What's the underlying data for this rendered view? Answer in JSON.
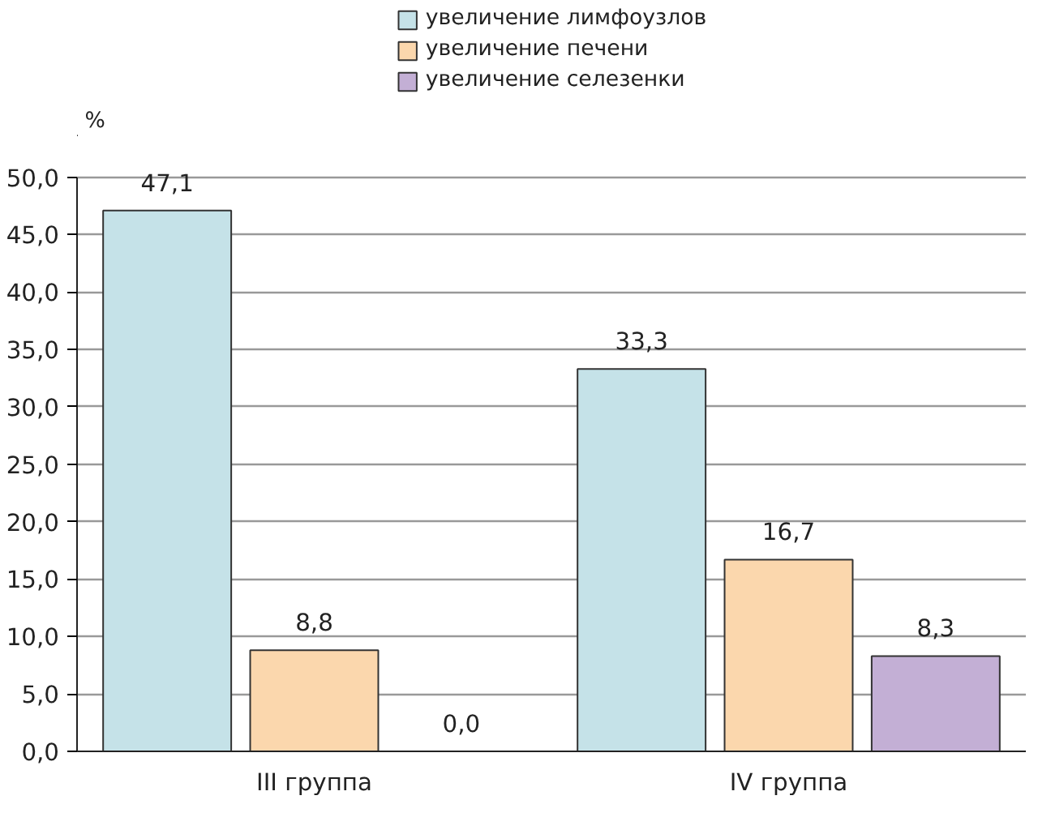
{
  "chart_data": {
    "type": "bar",
    "ylabel": "%",
    "categories": [
      "III группа",
      "IV группа"
    ],
    "series": [
      {
        "name": "увеличение лимфоузлов",
        "color": "#c5e2e8",
        "values": [
          47.1,
          33.3
        ],
        "value_labels": [
          "47,1",
          "33,3"
        ]
      },
      {
        "name": "увеличение печени",
        "color": "#fbd7ad",
        "values": [
          8.8,
          16.7
        ],
        "value_labels": [
          "8,8",
          "16,7"
        ]
      },
      {
        "name": "увеличение селезенки",
        "color": "#c3afd5",
        "values": [
          0.0,
          8.3
        ],
        "value_labels": [
          "0,0",
          "8,3"
        ]
      }
    ],
    "ylim": [
      0,
      50
    ],
    "yticks": [
      {
        "value": 0,
        "label": "0,0"
      },
      {
        "value": 5,
        "label": "5,0"
      },
      {
        "value": 10,
        "label": "10,0"
      },
      {
        "value": 15,
        "label": "15,0"
      },
      {
        "value": 20,
        "label": "20,0"
      },
      {
        "value": 25,
        "label": "25,0"
      },
      {
        "value": 30,
        "label": "30,0"
      },
      {
        "value": 35,
        "label": "35,0"
      },
      {
        "value": 40,
        "label": "40,0"
      },
      {
        "value": 45,
        "label": "45,0"
      },
      {
        "value": 50,
        "label": "50,0"
      }
    ],
    "grid": "y",
    "legend": "top"
  }
}
